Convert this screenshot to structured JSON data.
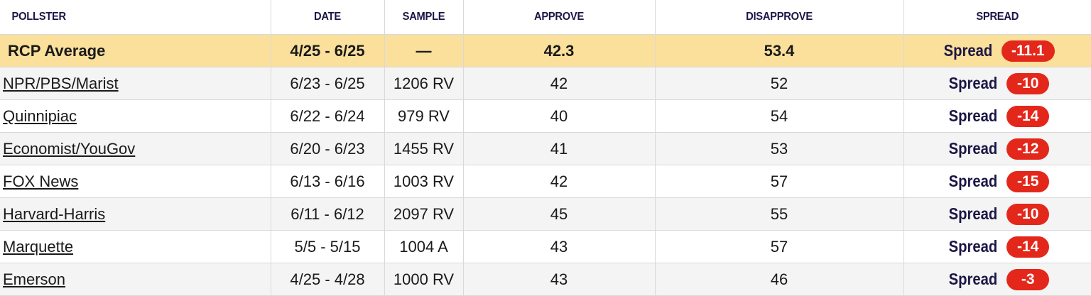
{
  "columns": {
    "pollster": "POLLSTER",
    "date": "DATE",
    "sample": "SAMPLE",
    "approve": "APPROVE",
    "disapprove": "DISAPPROVE",
    "spread": "SPREAD"
  },
  "average": {
    "pollster": "RCP Average",
    "date": "4/25 - 6/25",
    "sample": "—",
    "approve": "42.3",
    "disapprove": "53.4",
    "spread_label": "Spread",
    "spread_value": "-11.1"
  },
  "rows": [
    {
      "pollster": "NPR/PBS/Marist",
      "date": "6/23 - 6/25",
      "sample": "1206 RV",
      "approve": "42",
      "disapprove": "52",
      "spread_label": "Spread",
      "spread_value": "-10"
    },
    {
      "pollster": "Quinnipiac",
      "date": "6/22 - 6/24",
      "sample": "979 RV",
      "approve": "40",
      "disapprove": "54",
      "spread_label": "Spread",
      "spread_value": "-14"
    },
    {
      "pollster": "Economist/YouGov",
      "date": "6/20 - 6/23",
      "sample": "1455 RV",
      "approve": "41",
      "disapprove": "53",
      "spread_label": "Spread",
      "spread_value": "-12"
    },
    {
      "pollster": "FOX News",
      "date": "6/13 - 6/16",
      "sample": "1003 RV",
      "approve": "42",
      "disapprove": "57",
      "spread_label": "Spread",
      "spread_value": "-15"
    },
    {
      "pollster": "Harvard-Harris",
      "date": "6/11 - 6/12",
      "sample": "2097 RV",
      "approve": "45",
      "disapprove": "55",
      "spread_label": "Spread",
      "spread_value": "-10"
    },
    {
      "pollster": "Marquette",
      "date": "5/5 - 5/15",
      "sample": "1004 A",
      "approve": "43",
      "disapprove": "57",
      "spread_label": "Spread",
      "spread_value": "-14"
    },
    {
      "pollster": "Emerson",
      "date": "4/25 - 4/28",
      "sample": "1000 RV",
      "approve": "43",
      "disapprove": "46",
      "spread_label": "Spread",
      "spread_value": "-3"
    }
  ],
  "colors": {
    "average_row_bg": "#fbe09b",
    "spread_pill": "#e4271b",
    "header_text": "#1b1646",
    "alt_row_bg": "#f4f4f4"
  }
}
